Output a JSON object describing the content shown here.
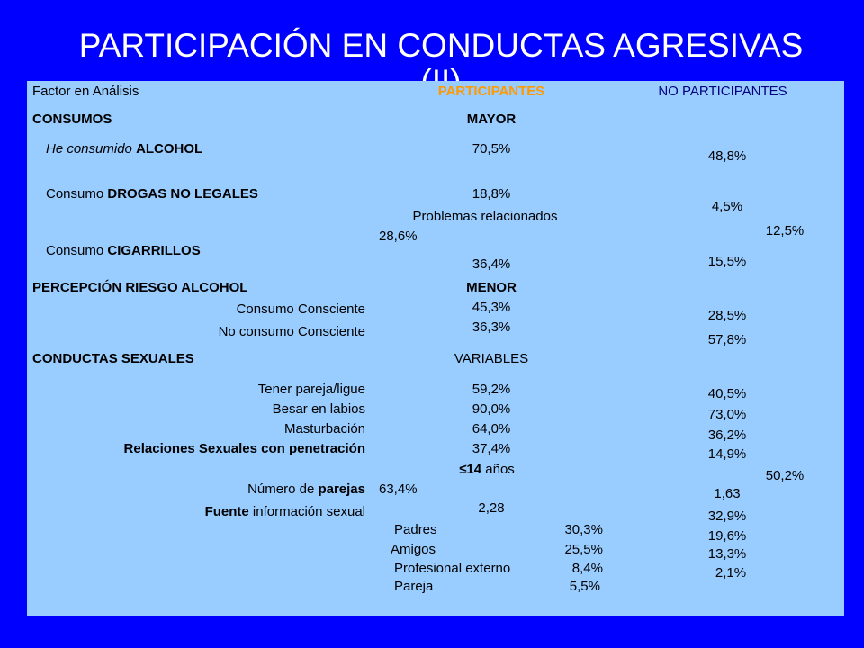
{
  "title": "PARTICIPACIÓN EN CONDUCTAS AGRESIVAS",
  "title_line2": "(II)",
  "header": {
    "factor": "Factor en Análisis",
    "participantes": "PARTICIPANTES",
    "no_participantes": "NO PARTICIPANTES"
  },
  "consumos": {
    "section": "CONSUMOS",
    "tendency": "MAYOR",
    "alcohol_pre": "He consumido ",
    "alcohol_bold": "ALCOHOL",
    "alcohol_p": "70,5%",
    "alcohol_np": "48,8%",
    "drogas_pre": "Consumo ",
    "drogas_bold": "DROGAS NO LEGALES",
    "drogas_p": "18,8%",
    "drogas_np": "4,5%",
    "problemas_label": "Problemas relacionados",
    "problemas_p": "28,6%",
    "problemas_np": "12,5%",
    "cigarrillos_pre": "Consumo ",
    "cigarrillos_bold": "CIGARRILLOS",
    "cigarrillos_p": "36,4%",
    "cigarrillos_np": "15,5%"
  },
  "riesgo": {
    "section": "PERCEPCIÓN RIESGO ALCOHOL",
    "tendency": "MENOR",
    "consciente_label": "Consumo Consciente",
    "consciente_p": "45,3%",
    "consciente_np": "28,5%",
    "no_consciente_label": "No consumo Consciente",
    "no_consciente_p": "36,3%",
    "no_consciente_np": "57,8%"
  },
  "sexuales": {
    "section": "CONDUCTAS SEXUALES",
    "tendency": "VARIABLES",
    "pareja_label": "Tener pareja/ligue",
    "pareja_p": "59,2%",
    "pareja_np": "40,5%",
    "besar_label": "Besar en labios",
    "besar_p": "90,0%",
    "besar_np": "73,0%",
    "mast_label": "Masturbación",
    "mast_p": "64,0%",
    "mast_np": "36,2%",
    "rel_label": "Relaciones Sexuales con penetración",
    "rel_p": "37,4%",
    "rel_np": "14,9%",
    "edad_bold": "≤14",
    "edad_rest": " años",
    "edad_p": "63,4%",
    "edad_np": "50,2%",
    "num_pre": "Número de ",
    "num_bold": "parejas",
    "num_p": "2,28",
    "num_np": "1,63",
    "fuente_bold": "Fuente",
    "fuente_rest": " información sexual",
    "fuentes": [
      {
        "label": "Padres",
        "p": "30,3%",
        "np": "32,9%"
      },
      {
        "label": "Amigos",
        "p": "25,5%",
        "np": "19,6%"
      },
      {
        "label": "Profesional externo",
        "p": "8,4%",
        "np": "13,3%"
      },
      {
        "label": "Pareja",
        "p": "5,5%",
        "np": "2,1%"
      }
    ]
  }
}
